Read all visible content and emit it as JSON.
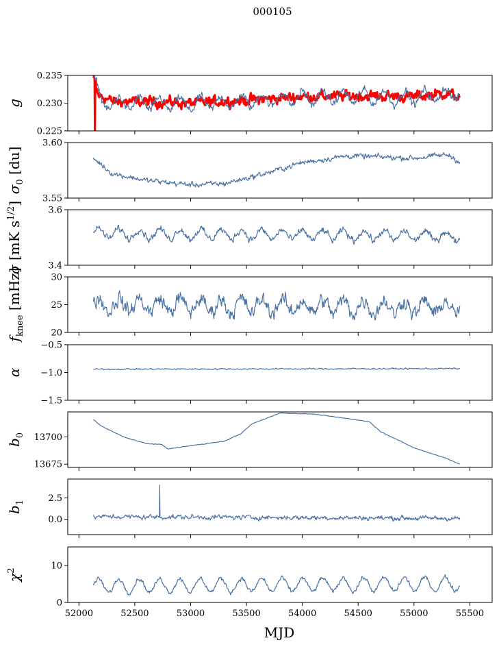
{
  "chart_data": {
    "type": "line",
    "title": "000105",
    "xlabel": "MJD",
    "xlim": [
      51900,
      55700
    ],
    "x_ticks": [
      "52000",
      "52500",
      "53000",
      "53500",
      "54000",
      "54500",
      "55000",
      "55500"
    ],
    "x_tick_values": [
      52000,
      52500,
      53000,
      53500,
      54000,
      54500,
      55000,
      55500
    ],
    "x_range": [
      52130,
      55410
    ],
    "series_color": "#4a72a3",
    "panels": [
      {
        "id": "g",
        "ylabel_html": "g",
        "ylim": [
          0.225,
          0.235
        ],
        "yticks": [
          0.225,
          0.23,
          0.235
        ],
        "ytick_labels": [
          "0.225",
          "0.230",
          "0.235"
        ],
        "series": [
          {
            "color": "#ff0000",
            "style": "band",
            "base": 0.2302,
            "noise": 0.0015,
            "shape": [
              [
                52130,
                0.2345
              ],
              [
                52170,
                0.2315
              ],
              [
                52300,
                0.2303
              ],
              [
                52700,
                0.2302
              ],
              [
                53000,
                0.23
              ],
              [
                53500,
                0.2305
              ],
              [
                54000,
                0.2312
              ],
              [
                54500,
                0.2313
              ],
              [
                55000,
                0.2312
              ],
              [
                55300,
                0.2318
              ],
              [
                55410,
                0.231
              ]
            ],
            "spike": [
              [
                52140,
                0.225
              ]
            ]
          },
          {
            "color": "#4a72a3",
            "style": "line",
            "base": 0.2302,
            "noise": 0.0012,
            "shape": [
              [
                52130,
                0.2345
              ],
              [
                52200,
                0.23
              ],
              [
                53000,
                0.2298
              ],
              [
                54000,
                0.231
              ],
              [
                54500,
                0.2312
              ],
              [
                55000,
                0.231
              ],
              [
                55410,
                0.2318
              ]
            ],
            "amp": 0.0012
          }
        ]
      },
      {
        "id": "sigma0",
        "ylabel_html": "σ0 [du]",
        "ylim": [
          3.55,
          3.6
        ],
        "yticks": [
          3.55,
          3.6
        ],
        "ytick_labels": [
          "3.55",
          "3.60"
        ],
        "series": [
          {
            "color": "#4a72a3",
            "style": "line",
            "noise": 0.004,
            "shape": [
              [
                52130,
                3.586
              ],
              [
                52300,
                3.572
              ],
              [
                52600,
                3.566
              ],
              [
                53000,
                3.562
              ],
              [
                53300,
                3.563
              ],
              [
                53700,
                3.573
              ],
              [
                54000,
                3.582
              ],
              [
                54400,
                3.588
              ],
              [
                54700,
                3.587
              ],
              [
                55000,
                3.586
              ],
              [
                55300,
                3.589
              ],
              [
                55410,
                3.583
              ]
            ]
          }
        ]
      },
      {
        "id": "sigma",
        "ylabel_html": "σ [mK s1/2]",
        "ylim": [
          3.4,
          3.6
        ],
        "yticks": [
          3.4,
          3.6
        ],
        "ytick_labels": [
          "3.4",
          "3.6"
        ],
        "series": [
          {
            "color": "#4a72a3",
            "style": "line",
            "noise": 0.02,
            "amp": 0.018,
            "shape": [
              [
                52130,
                3.515
              ],
              [
                55410,
                3.505
              ]
            ]
          }
        ]
      },
      {
        "id": "fknee",
        "ylabel_html": "fknee [mHz]",
        "ylim": [
          20,
          30
        ],
        "yticks": [
          20,
          25,
          30
        ],
        "ytick_labels": [
          "20",
          "25",
          "30"
        ],
        "series": [
          {
            "color": "#4a72a3",
            "style": "line",
            "noise": 2.2,
            "amp": 1.2,
            "shape": [
              [
                52130,
                25
              ],
              [
                55410,
                24.5
              ]
            ]
          }
        ]
      },
      {
        "id": "alpha",
        "ylabel_html": "α",
        "ylim": [
          -1.5,
          -0.5
        ],
        "yticks": [
          -1.5,
          -1.0,
          -0.5
        ],
        "ytick_labels": [
          "−1.5",
          "−1.0",
          "−0.5"
        ],
        "series": [
          {
            "color": "#4a72a3",
            "style": "line",
            "noise": 0.02,
            "shape": [
              [
                52130,
                -0.94
              ],
              [
                55410,
                -0.93
              ]
            ]
          }
        ]
      },
      {
        "id": "b0",
        "ylabel_html": "b0",
        "ylim": [
          13672,
          13723
        ],
        "yticks": [
          13675,
          13700
        ],
        "ytick_labels": [
          "13675",
          "13700"
        ],
        "series": [
          {
            "color": "#4a72a3",
            "style": "line",
            "noise": 0.4,
            "shape": [
              [
                52130,
                13716
              ],
              [
                52200,
                13710
              ],
              [
                52400,
                13700
              ],
              [
                52600,
                13694
              ],
              [
                52740,
                13693
              ],
              [
                52800,
                13689
              ],
              [
                53000,
                13692
              ],
              [
                53300,
                13696
              ],
              [
                53450,
                13703
              ],
              [
                53550,
                13712
              ],
              [
                53800,
                13722
              ],
              [
                54100,
                13721
              ],
              [
                54400,
                13717
              ],
              [
                54600,
                13714
              ],
              [
                54700,
                13705
              ],
              [
                55000,
                13690
              ],
              [
                55300,
                13680
              ],
              [
                55410,
                13675
              ]
            ]
          }
        ]
      },
      {
        "id": "b1",
        "ylabel_html": "b1",
        "ylim": [
          -1.8,
          4.7
        ],
        "yticks": [
          0.0,
          2.5
        ],
        "ytick_labels": [
          "0.0",
          "2.5"
        ],
        "series": [
          {
            "color": "#4a72a3",
            "style": "line",
            "noise": 0.45,
            "shape": [
              [
                52130,
                0.3
              ],
              [
                55410,
                0.1
              ]
            ],
            "spike": [
              [
                52720,
                4.0
              ]
            ]
          }
        ]
      },
      {
        "id": "chi2",
        "ylabel_html": "χ2",
        "ylim": [
          0,
          15
        ],
        "yticks": [
          0,
          10
        ],
        "ytick_labels": [
          "0",
          "10"
        ],
        "series": [
          {
            "color": "#4a72a3",
            "style": "line",
            "noise": 0.9,
            "amp": 1.8,
            "shape": [
              [
                52130,
                4.5
              ],
              [
                55410,
                5
              ]
            ]
          }
        ]
      }
    ]
  }
}
